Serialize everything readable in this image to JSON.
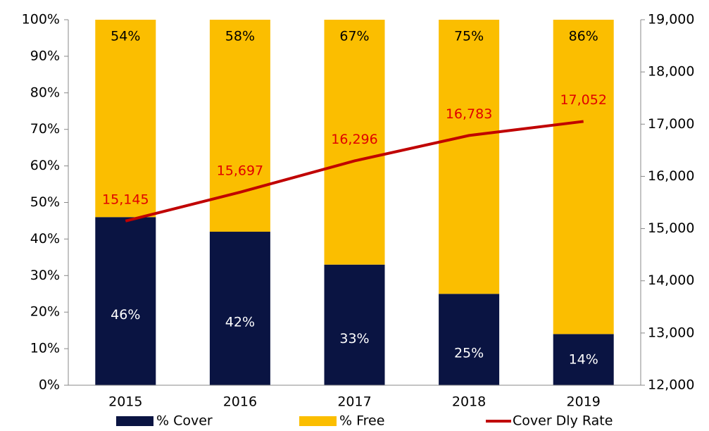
{
  "chart_data": {
    "type": "bar",
    "stacked": true,
    "categories": [
      "2015",
      "2016",
      "2017",
      "2018",
      "2019"
    ],
    "series": [
      {
        "name": "% Cover",
        "color": "#0a1442",
        "values": [
          46,
          42,
          33,
          25,
          14
        ],
        "value_labels": [
          "46%",
          "42%",
          "33%",
          "25%",
          "14%"
        ],
        "label_color": "#ffffff"
      },
      {
        "name": "% Free",
        "color": "#fbbe00",
        "values": [
          54,
          58,
          67,
          75,
          86
        ],
        "value_labels": [
          "54%",
          "58%",
          "67%",
          "75%",
          "86%"
        ],
        "label_color": "#000000"
      },
      {
        "name": "Cover Dly Rate",
        "type": "line",
        "axis": "y2",
        "color": "#c00000",
        "values": [
          15145,
          15697,
          16296,
          16783,
          17052
        ],
        "value_labels": [
          "15,145",
          "15,697",
          "16,296",
          "16,783",
          "17,052"
        ],
        "label_color": "#e00000"
      }
    ],
    "ylim": [
      0,
      100
    ],
    "yticks": [
      {
        "value": 0,
        "label": "0%"
      },
      {
        "value": 10,
        "label": "10%"
      },
      {
        "value": 20,
        "label": "20%"
      },
      {
        "value": 30,
        "label": "30%"
      },
      {
        "value": 40,
        "label": "40%"
      },
      {
        "value": 50,
        "label": "50%"
      },
      {
        "value": 60,
        "label": "60%"
      },
      {
        "value": 70,
        "label": "70%"
      },
      {
        "value": 80,
        "label": "80%"
      },
      {
        "value": 90,
        "label": "90%"
      },
      {
        "value": 100,
        "label": "100%"
      }
    ],
    "y2lim": [
      12000,
      19000
    ],
    "y2ticks": [
      {
        "value": 12000,
        "label": "12,000"
      },
      {
        "value": 13000,
        "label": "13,000"
      },
      {
        "value": 14000,
        "label": "14,000"
      },
      {
        "value": 15000,
        "label": "15,000"
      },
      {
        "value": 16000,
        "label": "16,000"
      },
      {
        "value": 17000,
        "label": "17,000"
      },
      {
        "value": 18000,
        "label": "18,000"
      },
      {
        "value": 19000,
        "label": "19,000"
      }
    ],
    "grid": false,
    "legend": "bottom"
  }
}
